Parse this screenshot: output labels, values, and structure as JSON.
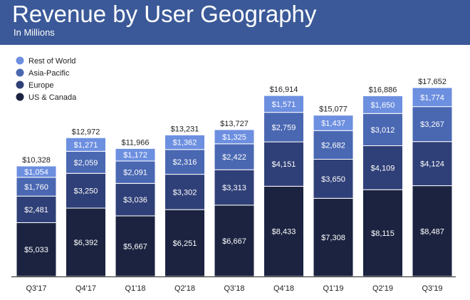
{
  "header": {
    "title": "Revenue by User Geography",
    "subtitle": "In Millions"
  },
  "colors": {
    "header_bg": "#3b5998",
    "rest_of_world": "#6d8fe0",
    "asia_pacific": "#4a67b2",
    "europe": "#2f3f77",
    "us_canada": "#1b2340",
    "axis": "#222222"
  },
  "chart_data": {
    "type": "bar",
    "stacked": true,
    "categories": [
      "Q3'17",
      "Q4'17",
      "Q1'18",
      "Q2'18",
      "Q3'18",
      "Q4'18",
      "Q1'19",
      "Q2'19",
      "Q3'19"
    ],
    "series": [
      {
        "name": "US & Canada",
        "values": [
          5033,
          6392,
          5667,
          6251,
          6667,
          8433,
          7308,
          8115,
          8487
        ]
      },
      {
        "name": "Europe",
        "values": [
          2481,
          3250,
          3036,
          3302,
          3313,
          4151,
          3650,
          4109,
          4124
        ]
      },
      {
        "name": "Asia-Pacific",
        "values": [
          1760,
          2059,
          2091,
          2316,
          2422,
          2759,
          2682,
          3012,
          3267
        ]
      },
      {
        "name": "Rest of World",
        "values": [
          1054,
          1271,
          1172,
          1362,
          1325,
          1571,
          1437,
          1650,
          1774
        ]
      }
    ],
    "labels": [
      [
        "$5,033",
        "$6,392",
        "$5,667",
        "$6,251",
        "$6,667",
        "$8,433",
        "$7,308",
        "$8,115",
        "$8,487"
      ],
      [
        "$2,481",
        "$3,250",
        "$3,036",
        "$3,302",
        "$3,313",
        "$4,151",
        "$3,650",
        "$4,109",
        "$4,124"
      ],
      [
        "$1,760",
        "$2,059",
        "$2,091",
        "$2,316",
        "$2,422",
        "$2,759",
        "$2,682",
        "$3,012",
        "$3,267"
      ],
      [
        "$1,054",
        "$1,271",
        "$1,172",
        "$1,362",
        "$1,325",
        "$1,571",
        "$1,437",
        "$1,650",
        "$1,774"
      ]
    ],
    "totals": [
      "$10,328",
      "$12,972",
      "$11,966",
      "$13,231",
      "$13,727",
      "$16,914",
      "$15,077",
      "$16,886",
      "$17,652"
    ],
    "legend": [
      "Rest of World",
      "Asia-Pacific",
      "Europe",
      "US & Canada"
    ],
    "legend_position": "top-left",
    "grid": false,
    "ylim": [
      0,
      18000
    ]
  }
}
